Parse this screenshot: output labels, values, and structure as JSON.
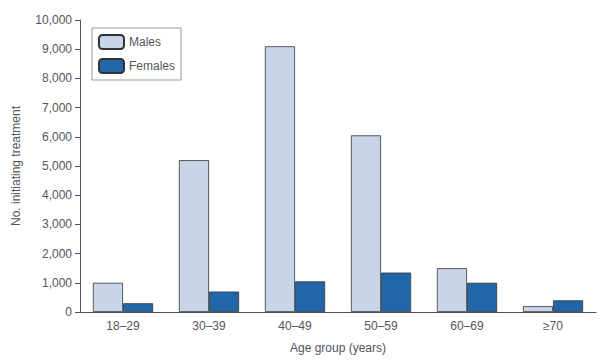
{
  "chart_data": {
    "type": "bar",
    "xlabel": "Age group (years)",
    "ylabel": "No. initiating treatment",
    "categories": [
      "18–29",
      "30–39",
      "40–49",
      "50–59",
      "60–69",
      "≥70"
    ],
    "series": [
      {
        "name": "Males",
        "color": "#c8d4e8",
        "values": [
          1000,
          5200,
          9100,
          6050,
          1500,
          200
        ]
      },
      {
        "name": "Females",
        "color": "#2266aa",
        "values": [
          300,
          700,
          1050,
          1350,
          1000,
          400
        ]
      }
    ],
    "ylim": [
      0,
      10000
    ],
    "yticks": [
      0,
      {
        "value": 1000,
        "label": "1,000"
      },
      {
        "value": 2000,
        "label": "2,000"
      },
      {
        "value": 3000,
        "label": "3,000"
      },
      {
        "value": 4000,
        "label": "4,000"
      },
      {
        "value": 5000,
        "label": "5,000"
      },
      {
        "value": 6000,
        "label": "6,000"
      },
      {
        "value": 7000,
        "label": "7,000"
      },
      {
        "value": 8000,
        "label": "8,000"
      },
      {
        "value": 9000,
        "label": "9,000"
      },
      {
        "value": 10000,
        "label": "10,000"
      }
    ],
    "grid": false,
    "legend": "upper left"
  }
}
